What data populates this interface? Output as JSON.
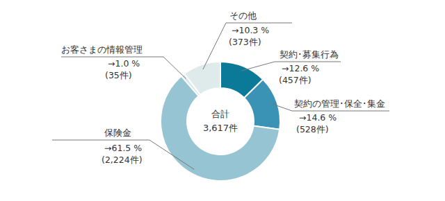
{
  "chart_data": {
    "type": "pie",
    "donut": true,
    "categories": [
      "契約･募集行為",
      "契約の管理･保全･集金",
      "保険金",
      "お客さまの情報管理",
      "その他"
    ],
    "values": [
      12.6,
      14.6,
      61.5,
      1.0,
      10.3
    ],
    "value_labels": [
      "→12.6 %",
      "→14.6 %",
      "→61.5 %",
      "→1.0 %",
      "→10.3 %"
    ],
    "counts": [
      457,
      528,
      2224,
      35,
      373
    ],
    "count_labels": [
      "(457件)",
      "(528件)",
      "(2,224件)",
      "(35件)",
      "(373件)"
    ],
    "colors": [
      "#0b7a99",
      "#3a93b4",
      "#97c4d3",
      "#d6e8ec",
      "#dfeaea"
    ],
    "total": {
      "label": "合計",
      "value": 3617,
      "value_label": "3,617件"
    }
  }
}
